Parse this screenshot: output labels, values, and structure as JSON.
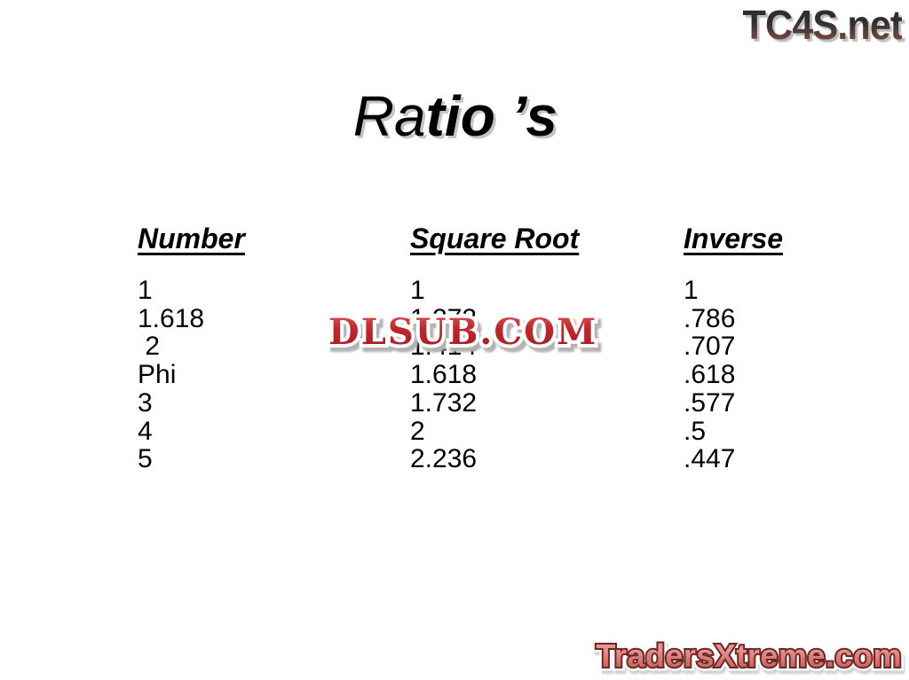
{
  "title": {
    "part1": "Ra",
    "part2": "tio",
    "part3": " ’s"
  },
  "branding": {
    "tc4s": {
      "text": "TC4S.net"
    },
    "dlsub": {
      "text": "DLSUB.COM"
    },
    "tradersxtreme": {
      "text": "TradersXtreme.com"
    }
  },
  "table": {
    "headers": [
      "Number",
      "Square Root",
      "Inverse"
    ],
    "rows": [
      [
        "1",
        "1",
        "1"
      ],
      [
        "1.618",
        "1.272",
        ".786"
      ],
      [
        " 2",
        "1.414",
        ".707"
      ],
      [
        "Phi",
        "1.618",
        ".618"
      ],
      [
        "3",
        "1.732",
        ".577"
      ],
      [
        "4",
        "2",
        ".5"
      ],
      [
        "5",
        "2.236",
        ".447"
      ]
    ]
  },
  "colors": {
    "background": "#ffffff",
    "text": "#000000",
    "title_shadow": "#c4c4c4",
    "tc4s_dark": "#2e2e2e",
    "tc4s_rust": "#7d4a42",
    "tc4s_shadow": "#bdbdbd",
    "dlsub_red": "#c1272d",
    "dlsub_shadow": "#b3b3b3",
    "tx_fill_light": "#e9928e",
    "tx_fill_dark": "#c04f4c",
    "tx_outline": "#6b2a28",
    "tx_shadow": "#cfcfcf"
  }
}
